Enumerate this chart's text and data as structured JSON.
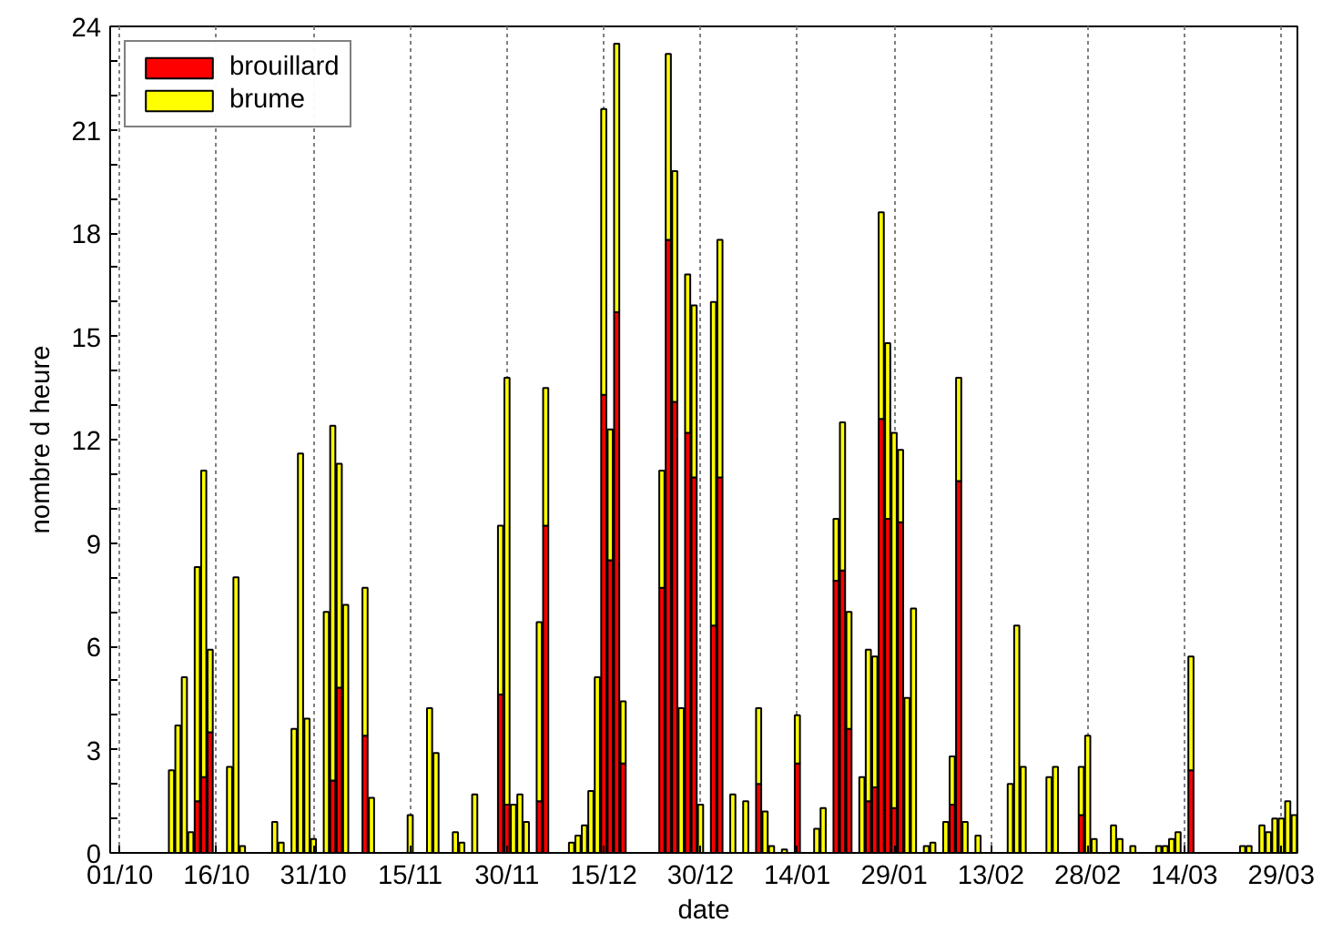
{
  "chart_data": {
    "type": "bar",
    "stacked": true,
    "xlabel": "date",
    "ylabel": "nombre d heure",
    "categories": [
      null,
      "01/10",
      null,
      null,
      null,
      null,
      null,
      null,
      null,
      null,
      null,
      null,
      null,
      null,
      null,
      null,
      "16/10",
      null,
      null,
      null,
      null,
      null,
      null,
      null,
      null,
      null,
      null,
      null,
      null,
      null,
      null,
      "31/10",
      null,
      null,
      null,
      null,
      null,
      null,
      null,
      null,
      null,
      null,
      null,
      null,
      null,
      null,
      "15/11",
      null,
      null,
      null,
      null,
      null,
      null,
      null,
      null,
      null,
      null,
      null,
      null,
      null,
      null,
      "30/11",
      null,
      null,
      null,
      null,
      null,
      null,
      null,
      null,
      null,
      null,
      null,
      null,
      null,
      null,
      "15/12",
      null,
      null,
      null,
      null,
      null,
      null,
      null,
      null,
      null,
      null,
      null,
      null,
      null,
      null,
      "30/12",
      null,
      null,
      null,
      null,
      null,
      null,
      null,
      null,
      null,
      null,
      null,
      null,
      null,
      null,
      "14/01",
      null,
      null,
      null,
      null,
      null,
      null,
      null,
      null,
      null,
      null,
      null,
      null,
      null,
      null,
      "29/01",
      null,
      null,
      null,
      null,
      null,
      null,
      null,
      null,
      null,
      null,
      null,
      null,
      null,
      null,
      "13/02",
      null,
      null,
      null,
      null,
      null,
      null,
      null,
      null,
      null,
      null,
      null,
      null,
      null,
      null,
      "28/02",
      null,
      null,
      null,
      null,
      null,
      null,
      null,
      null,
      null,
      null,
      null,
      null,
      null,
      null,
      "14/03",
      null,
      null,
      null,
      null,
      null,
      null,
      null,
      null,
      null,
      null,
      null,
      null,
      null,
      null,
      "29/03",
      null,
      null
    ],
    "ylim": [
      0,
      24
    ],
    "yticks": [
      0,
      {
        "value": 1,
        "label": null
      },
      {
        "value": 2,
        "label": null
      },
      3,
      {
        "value": 4,
        "label": null
      },
      {
        "value": 5,
        "label": null
      },
      6,
      {
        "value": 7,
        "label": null
      },
      {
        "value": 8,
        "label": null
      },
      9,
      {
        "value": 10,
        "label": null
      },
      {
        "value": 11,
        "label": null
      },
      12,
      {
        "value": 13,
        "label": null
      },
      {
        "value": 14,
        "label": null
      },
      15,
      {
        "value": 16,
        "label": null
      },
      {
        "value": 17,
        "label": null
      },
      18,
      {
        "value": 19,
        "label": null
      },
      {
        "value": 20,
        "label": null
      },
      21,
      {
        "value": 22,
        "label": null
      },
      {
        "value": 23,
        "label": null
      },
      24
    ],
    "grid": "x",
    "legend": "top left",
    "series": [
      {
        "name": "brouillard",
        "color": "#ff0000",
        "values": [
          null,
          null,
          null,
          null,
          null,
          null,
          null,
          null,
          null,
          null,
          null,
          null,
          null,
          1.5,
          2.2,
          3.5,
          null,
          null,
          null,
          null,
          null,
          null,
          null,
          null,
          null,
          null,
          null,
          null,
          null,
          null,
          null,
          null,
          null,
          null,
          2.1,
          4.8,
          null,
          null,
          null,
          3.4,
          null,
          null,
          null,
          null,
          null,
          null,
          null,
          null,
          null,
          null,
          null,
          null,
          null,
          null,
          null,
          null,
          null,
          null,
          null,
          null,
          4.6,
          1.4,
          null,
          null,
          null,
          null,
          1.5,
          9.5,
          null,
          null,
          null,
          null,
          null,
          null,
          null,
          null,
          13.3,
          8.5,
          15.7,
          2.6,
          null,
          null,
          null,
          null,
          null,
          7.7,
          17.8,
          13.1,
          null,
          12.2,
          10.9,
          null,
          null,
          6.6,
          10.9,
          null,
          null,
          null,
          null,
          null,
          2.0,
          null,
          null,
          null,
          null,
          null,
          2.6,
          null,
          null,
          null,
          null,
          null,
          7.9,
          8.2,
          3.6,
          null,
          null,
          1.5,
          1.9,
          12.6,
          9.7,
          1.3,
          9.6,
          null,
          null,
          null,
          null,
          null,
          null,
          null,
          1.4,
          10.8,
          null,
          null,
          null,
          null,
          null,
          null,
          null,
          null,
          null,
          null,
          null,
          null,
          null,
          null,
          null,
          null,
          null,
          null,
          1.1,
          null,
          null,
          null,
          null,
          null,
          null,
          null,
          null,
          null,
          null,
          null,
          null,
          null,
          null,
          null,
          null,
          2.4,
          null,
          null,
          null,
          null,
          null,
          null,
          null,
          null,
          null,
          null,
          null,
          null,
          null,
          null,
          null,
          null
        ]
      },
      {
        "name": "brume",
        "color": "#ffff00",
        "values": [
          null,
          null,
          null,
          null,
          null,
          null,
          null,
          null,
          null,
          2.4,
          3.7,
          5.1,
          0.6,
          6.8,
          8.9,
          2.4,
          null,
          null,
          2.5,
          8.0,
          0.2,
          null,
          null,
          null,
          null,
          0.9,
          0.3,
          null,
          3.6,
          11.6,
          3.9,
          0.4,
          null,
          7.0,
          10.3,
          6.5,
          7.2,
          null,
          null,
          4.3,
          1.6,
          null,
          null,
          null,
          null,
          null,
          1.1,
          null,
          null,
          4.2,
          2.9,
          null,
          null,
          0.6,
          0.3,
          null,
          1.7,
          null,
          null,
          null,
          4.9,
          12.4,
          1.4,
          1.7,
          0.9,
          null,
          5.2,
          4.0,
          null,
          null,
          null,
          0.3,
          0.5,
          0.8,
          1.8,
          5.1,
          8.3,
          3.8,
          7.8,
          1.8,
          null,
          null,
          null,
          null,
          null,
          3.4,
          5.4,
          6.7,
          4.2,
          4.6,
          5.0,
          1.4,
          null,
          9.4,
          6.9,
          null,
          1.7,
          null,
          1.5,
          null,
          2.2,
          1.2,
          0.2,
          null,
          0.1,
          null,
          1.4,
          null,
          null,
          0.7,
          1.3,
          null,
          1.8,
          4.3,
          3.4,
          null,
          2.2,
          4.4,
          3.8,
          6.0,
          5.1,
          10.9,
          2.1,
          4.5,
          7.1,
          null,
          0.2,
          0.3,
          null,
          0.9,
          1.4,
          3.0,
          0.9,
          null,
          0.5,
          null,
          null,
          null,
          null,
          2.0,
          6.6,
          2.5,
          null,
          null,
          null,
          2.2,
          2.5,
          null,
          null,
          null,
          1.4,
          3.4,
          0.4,
          null,
          null,
          0.8,
          0.4,
          null,
          0.2,
          null,
          null,
          null,
          0.2,
          0.2,
          0.4,
          0.6,
          null,
          3.3,
          null,
          null,
          null,
          null,
          null,
          null,
          null,
          0.2,
          0.2,
          null,
          0.8,
          0.6,
          1.0,
          1.0,
          1.5,
          1.1
        ]
      }
    ]
  }
}
